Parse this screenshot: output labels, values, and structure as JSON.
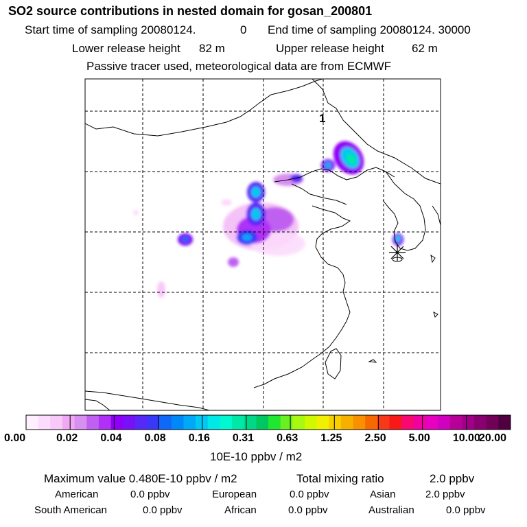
{
  "header": {
    "title": "SO2 source contributions in nested domain for gosan_200801",
    "start_label": "Start time of sampling 20080124.",
    "start_hour": "0",
    "end_label": "End time of sampling 20080124. 30000",
    "lower_height": "Lower release height",
    "lower_value": "82 m",
    "upper_height": "Upper release height",
    "upper_value": "62 m",
    "note": "Passive tracer used, meteorological data are from ECMWF"
  },
  "map": {
    "marker_label": "1",
    "release_site_icon": "asterisk-icon"
  },
  "colorbar": {
    "colors": [
      "#fef0fe",
      "#fcdcfc",
      "#f8c8f8",
      "#f0a8f4",
      "#d890f0",
      "#c060f0",
      "#b030f8",
      "#9000f8",
      "#7810f8",
      "#5828f8",
      "#3838f8",
      "#1068f8",
      "#0088f8",
      "#00a8f8",
      "#00c8f0",
      "#00e8e8",
      "#00f8d0",
      "#00e8a8",
      "#00d888",
      "#00c860",
      "#20e830",
      "#68f020",
      "#a8f810",
      "#d0f800",
      "#f0f000",
      "#f8d000",
      "#f8b000",
      "#f89000",
      "#f86800",
      "#f83818",
      "#f81818",
      "#f80870",
      "#f000a0",
      "#e800c0",
      "#d000c0",
      "#b80098",
      "#a00088",
      "#880070",
      "#700058",
      "#500040"
    ],
    "labels": [
      "0.00",
      "0.02",
      "0.04",
      "0.08",
      "0.16",
      "0.31",
      "0.63",
      "1.25",
      "2.50",
      "5.00",
      "10.00",
      "20.00"
    ],
    "unit": "10E-10 ppbv / m2"
  },
  "summary": {
    "max_label": "Maximum value  0.480E-10 ppbv / m2",
    "total_label": "Total mixing ratio",
    "total_value": "2.0 ppbv",
    "regions": [
      {
        "name": "American",
        "value": "0.0 ppbv"
      },
      {
        "name": "European",
        "value": "0.0 ppbv"
      },
      {
        "name": "Asian",
        "value": "2.0 ppbv"
      },
      {
        "name": "South American",
        "value": "0.0 ppbv"
      },
      {
        "name": "African",
        "value": "0.0 ppbv"
      },
      {
        "name": "Australian",
        "value": "0.0 ppbv"
      }
    ]
  }
}
